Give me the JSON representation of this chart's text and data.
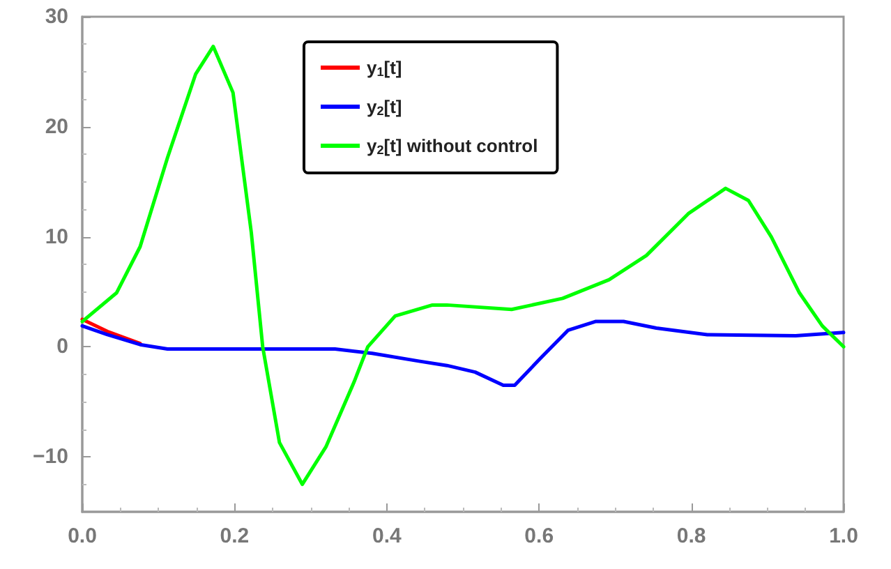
{
  "chart_data": {
    "type": "line",
    "xlim": [
      0,
      1
    ],
    "ylim": [
      -15,
      30
    ],
    "xticks": [
      {
        "value": 0,
        "label": "0.0"
      },
      {
        "value": 0.2,
        "label": "0.2"
      },
      {
        "value": 0.4,
        "label": "0.4"
      },
      {
        "value": 0.6,
        "label": "0.6"
      },
      {
        "value": 0.8,
        "label": "0.8"
      },
      {
        "value": 1,
        "label": "1.0"
      }
    ],
    "yticks": [
      {
        "value": -10,
        "label": "−10"
      },
      0,
      10,
      20,
      30
    ],
    "grid": false,
    "legend": "top",
    "marker": "none",
    "line_style": "solid",
    "series": [
      {
        "name": "y$_{1}$[t]",
        "color": "#ff0000",
        "x": [
          0,
          0.033,
          0.076
        ],
        "values": [
          2.5,
          1.4,
          0.3
        ]
      },
      {
        "name": "y$_{2}$[t]",
        "color": "#0000ff",
        "x": [
          0,
          0.033,
          0.076,
          0.112,
          0.332,
          0.381,
          0.442,
          0.479,
          0.516,
          0.553,
          0.568,
          0.601,
          0.638,
          0.674,
          0.711,
          0.754,
          0.821,
          0.937,
          1.0
        ],
        "values": [
          1.9,
          1.1,
          0.2,
          -0.2,
          -0.2,
          -0.6,
          -1.3,
          -1.7,
          -2.3,
          -3.5,
          -3.5,
          -1.1,
          1.5,
          2.3,
          2.3,
          1.7,
          1.1,
          1.0,
          1.3
        ]
      },
      {
        "name": "y$_{2}$[t] without control",
        "color": "#00ff00",
        "x": [
          0,
          0.045,
          0.076,
          0.112,
          0.149,
          0.172,
          0.198,
          0.222,
          0.237,
          0.259,
          0.289,
          0.32,
          0.357,
          0.375,
          0.411,
          0.46,
          0.479,
          0.564,
          0.631,
          0.692,
          0.741,
          0.796,
          0.845,
          0.875,
          0.905,
          0.942,
          0.972,
          1.0
        ],
        "values": [
          2.3,
          4.9,
          9.1,
          17.2,
          24.8,
          27.3,
          23.1,
          10.4,
          0,
          -8.7,
          -12.5,
          -9.1,
          -3.2,
          0,
          2.8,
          3.8,
          3.8,
          3.4,
          4.4,
          6.1,
          8.3,
          12.1,
          14.4,
          13.3,
          10.0,
          4.9,
          1.9,
          0
        ]
      }
    ]
  }
}
